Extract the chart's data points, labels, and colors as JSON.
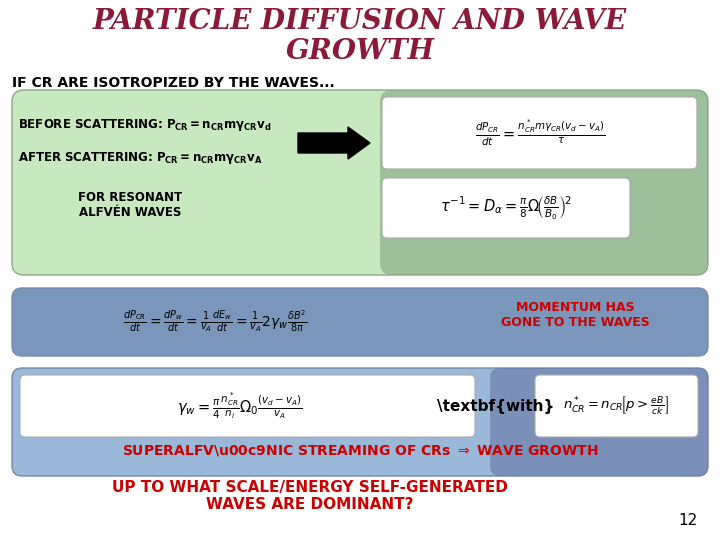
{
  "title_line1": "PARTICLE DIFFUSION AND WAVE",
  "title_line2": "GROWTH",
  "title_color": "#8B1A3A",
  "title_fontsize": 20,
  "bg_color": "#FFFFFF",
  "subtitle": "IF CR ARE ISOTROPIZED BY THE WAVES...",
  "box1_color_light": "#C8E8C0",
  "box1_color_dark": "#7A9E7A",
  "box2_color": "#7A96BA",
  "box3_color_left": "#9AB0CC",
  "box3_color_right": "#7080A8",
  "momentum_color": "#CC0000",
  "superalf_color": "#CC0000",
  "bottom_text_color": "#CC0000",
  "page_num": "12",
  "white": "#FFFFFF"
}
